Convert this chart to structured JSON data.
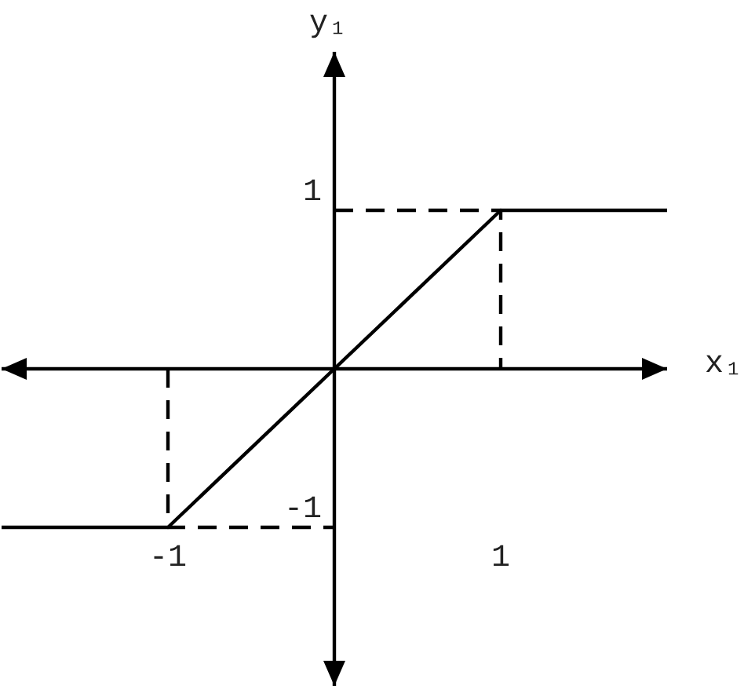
{
  "chart_data": {
    "type": "line",
    "xlabel": "x₁",
    "ylabel": "y₁",
    "xlim": [
      -2,
      2
    ],
    "ylim": [
      -2,
      2
    ],
    "xticks": [
      -1,
      1
    ],
    "yticks": [
      -1,
      1
    ],
    "series": [
      {
        "color": "#000000",
        "x": [
          -2,
          -1,
          1,
          2
        ],
        "values": [
          -1,
          -1,
          1,
          1
        ],
        "line_style": "solid"
      },
      {
        "color": "#000000",
        "x": [
          0,
          1,
          1
        ],
        "values": [
          1,
          1,
          0
        ],
        "line_style": "dashed"
      },
      {
        "color": "#000000",
        "x": [
          -1,
          -1,
          0
        ],
        "values": [
          0,
          -1,
          -1
        ],
        "line_style": "dashed"
      }
    ]
  }
}
